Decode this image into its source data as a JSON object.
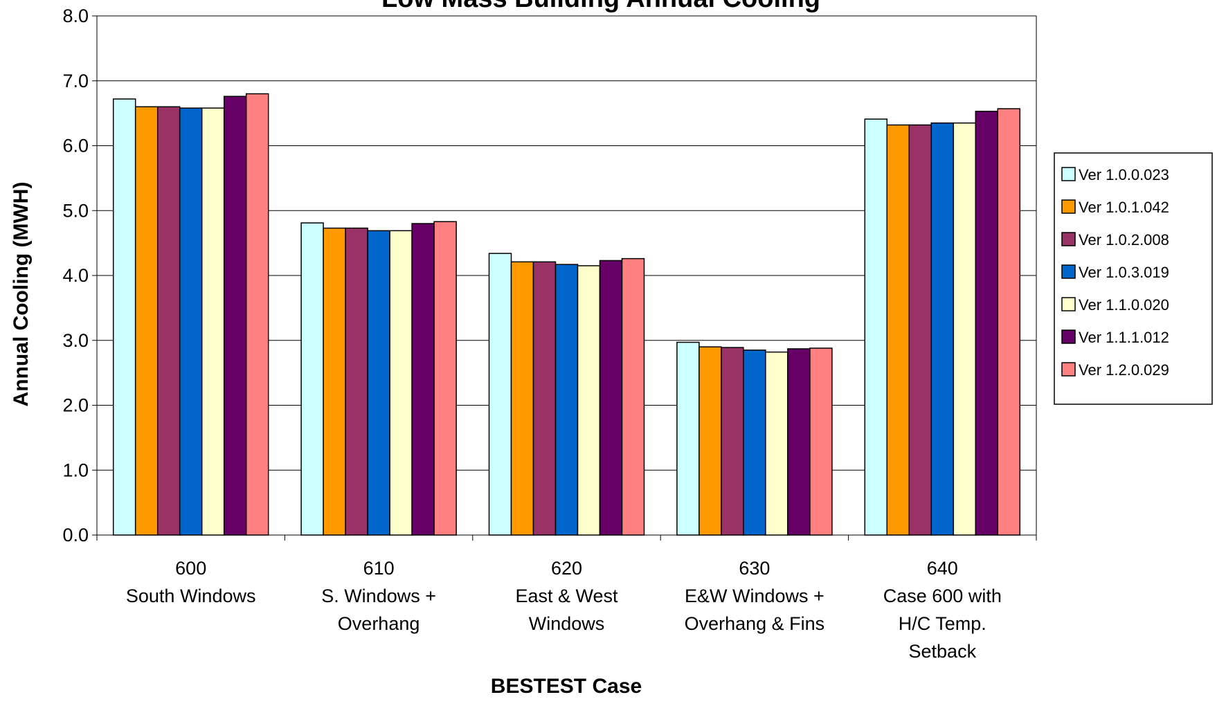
{
  "chart_data": {
    "type": "bar",
    "title": "Low Mass Building Annual Cooling",
    "xlabel": "BESTEST Case",
    "ylabel": "Annual Cooling (MWH)",
    "ylim": [
      0,
      8
    ],
    "yticks": [
      "0.0",
      "1.0",
      "2.0",
      "3.0",
      "4.0",
      "5.0",
      "6.0",
      "7.0",
      "8.0"
    ],
    "grid": true,
    "legend_position": "right",
    "categories": [
      [
        "600",
        "South Windows"
      ],
      [
        "610",
        "S. Windows +",
        "Overhang"
      ],
      [
        "620",
        "East & West",
        "Windows"
      ],
      [
        "630",
        "E&W Windows +",
        "Overhang & Fins"
      ],
      [
        "640",
        "Case 600 with",
        "H/C Temp.",
        "Setback"
      ]
    ],
    "series": [
      {
        "name": "Ver 1.0.0.023",
        "color": "#CCFFFF",
        "values": [
          6.72,
          4.81,
          4.34,
          2.97,
          6.41
        ]
      },
      {
        "name": "Ver 1.0.1.042",
        "color": "#FF9900",
        "values": [
          6.6,
          4.73,
          4.21,
          2.9,
          6.32
        ]
      },
      {
        "name": "Ver 1.0.2.008",
        "color": "#993366",
        "values": [
          6.6,
          4.73,
          4.21,
          2.89,
          6.32
        ]
      },
      {
        "name": "Ver 1.0.3.019",
        "color": "#0066CC",
        "values": [
          6.58,
          4.69,
          4.17,
          2.85,
          6.35
        ]
      },
      {
        "name": "Ver 1.1.0.020",
        "color": "#FFFFCC",
        "values": [
          6.58,
          4.69,
          4.15,
          2.82,
          6.35
        ]
      },
      {
        "name": "Ver 1.1.1.012",
        "color": "#660066",
        "values": [
          6.76,
          4.8,
          4.23,
          2.87,
          6.53
        ]
      },
      {
        "name": "Ver 1.2.0.029",
        "color": "#FF8080",
        "values": [
          6.8,
          4.83,
          4.26,
          2.88,
          6.57
        ]
      }
    ]
  }
}
